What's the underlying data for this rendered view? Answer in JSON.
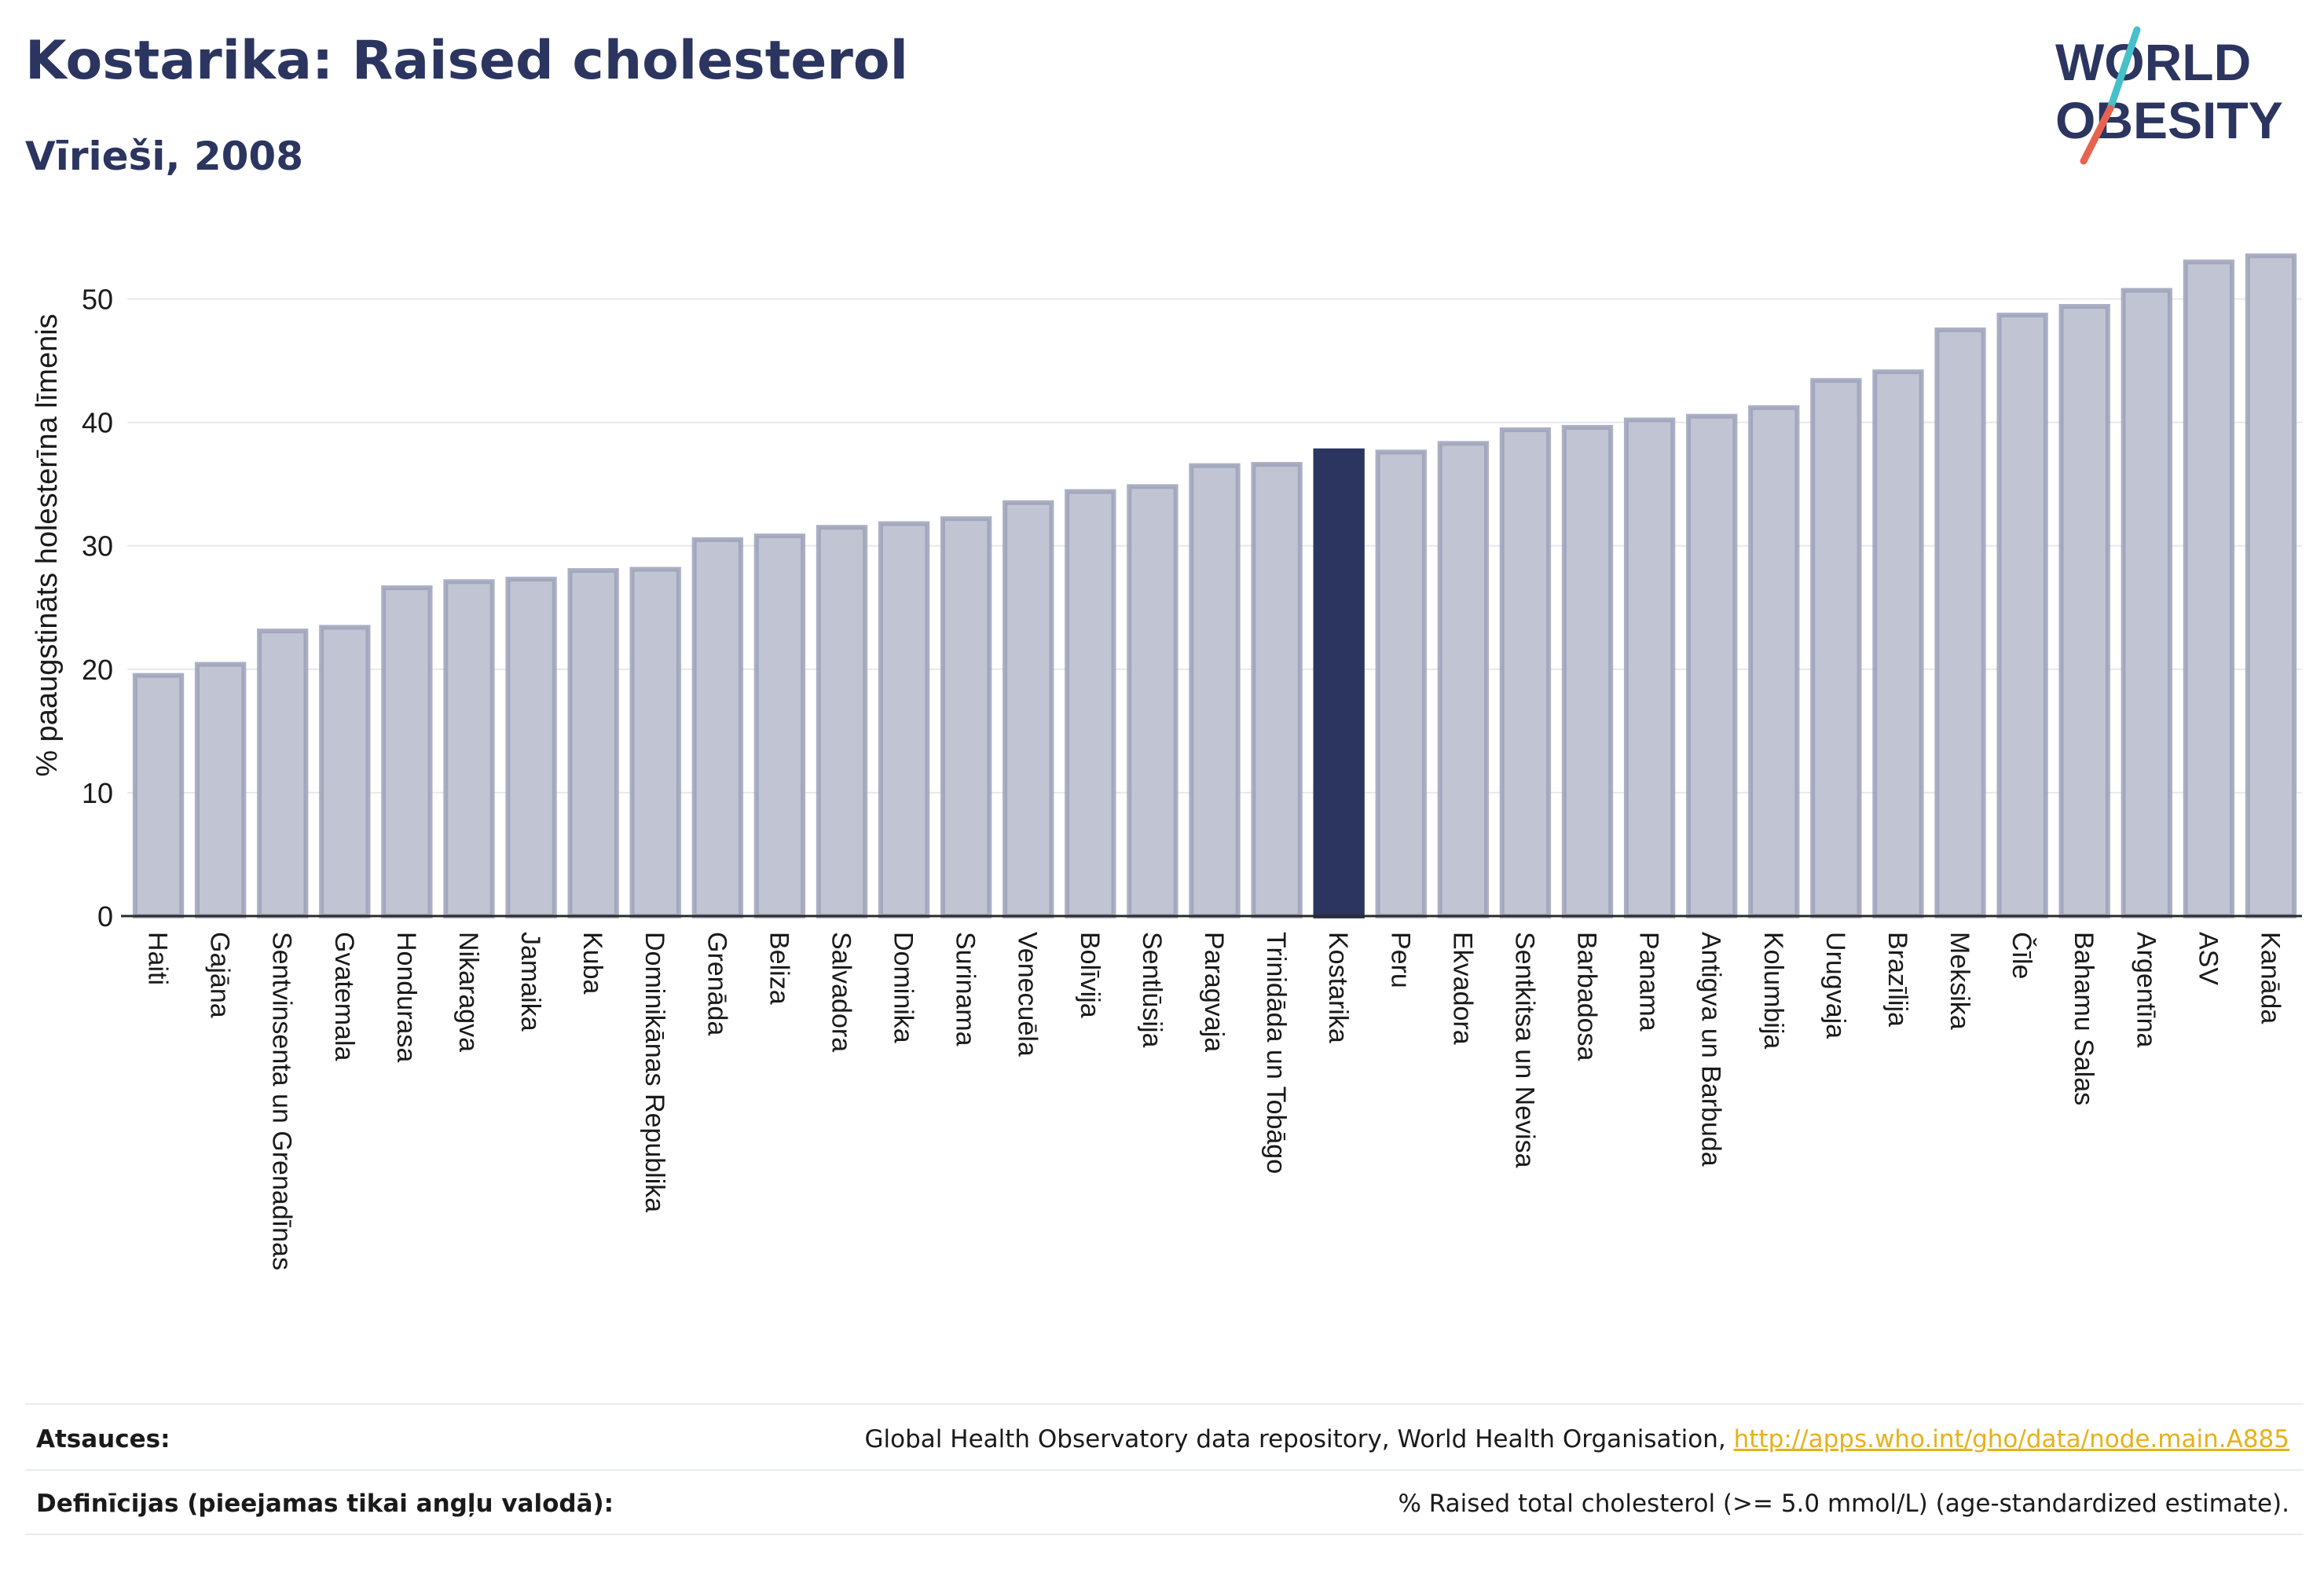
{
  "header": {
    "title": "Kostarika: Raised cholesterol",
    "subtitle": "Vīrieši, 2008"
  },
  "logo": {
    "line1": "WORLD",
    "line2": "OBESITY",
    "slash_colors": [
      "#46c1c9",
      "#e8634f"
    ],
    "text_color": "#2b3560"
  },
  "colors": {
    "bar": "#c1c5d3",
    "bar_stroke": "#9ca1b9",
    "highlight": "#2b3560",
    "grid": "#e6e8ee",
    "axis": "#2b2b2b"
  },
  "chart_data": {
    "type": "bar",
    "ylabel": "% paaugstināts holesterīna līmenis",
    "ylim": [
      0,
      55
    ],
    "yticks": [
      0,
      10,
      20,
      30,
      40,
      50
    ],
    "grid": true,
    "highlight": "Kostarika",
    "categories": [
      "Haiti",
      "Gajāna",
      "Sentvinsenta un Grenadīnas",
      "Gvatemala",
      "Hondurasa",
      "Nikaragva",
      "Jamaika",
      "Kuba",
      "Dominikānas Republika",
      "Grenāda",
      "Beliza",
      "Salvadora",
      "Dominika",
      "Surinama",
      "Venecuēla",
      "Bolīvija",
      "Sentlūsija",
      "Paragvaja",
      "Trinidāda un Tobāgo",
      "Kostarika",
      "Peru",
      "Ekvadora",
      "Sentkitsa un Nevisa",
      "Barbadosa",
      "Panama",
      "Antigva un Barbuda",
      "Kolumbija",
      "Urugvaja",
      "Brazīlija",
      "Meksika",
      "Čīle",
      "Bahamu Salas",
      "Argentīna",
      "ASV",
      "Kanāda"
    ],
    "values": [
      19.5,
      20.4,
      23.1,
      23.4,
      26.6,
      27.1,
      27.3,
      28.0,
      28.1,
      30.5,
      30.8,
      31.5,
      31.8,
      32.2,
      33.5,
      34.4,
      34.8,
      36.5,
      36.6,
      37.7,
      37.6,
      38.3,
      39.4,
      39.6,
      40.2,
      40.5,
      41.2,
      43.4,
      44.1,
      47.5,
      48.7,
      49.4,
      50.7,
      53.0,
      53.5
    ]
  },
  "footer": {
    "sources_label": "Atsauces:",
    "sources_text": "Global Health Observatory data repository, World Health Organisation, ",
    "sources_link": "http://apps.who.int/gho/data/node.main.A885",
    "definitions_label": "Definīcijas (pieejamas tikai angļu valodā):",
    "definitions_text": "% Raised total cholesterol (>= 5.0 mmol/L) (age-standardized estimate)."
  }
}
